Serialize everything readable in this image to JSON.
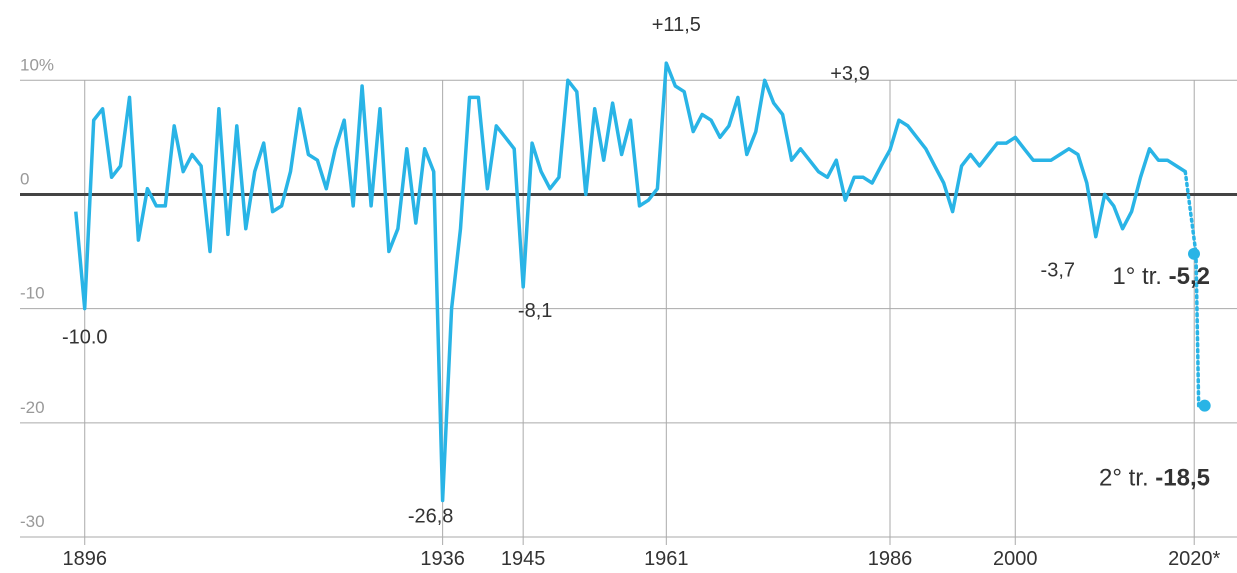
{
  "chart_data": {
    "type": "line",
    "x": [
      1895,
      1896,
      1897,
      1898,
      1899,
      1900,
      1901,
      1902,
      1903,
      1904,
      1905,
      1906,
      1907,
      1908,
      1909,
      1910,
      1911,
      1912,
      1913,
      1914,
      1915,
      1916,
      1917,
      1918,
      1919,
      1920,
      1921,
      1922,
      1923,
      1924,
      1925,
      1926,
      1927,
      1928,
      1929,
      1930,
      1931,
      1932,
      1933,
      1934,
      1935,
      1936,
      1937,
      1938,
      1939,
      1940,
      1941,
      1942,
      1943,
      1944,
      1945,
      1946,
      1947,
      1948,
      1949,
      1950,
      1951,
      1952,
      1953,
      1954,
      1955,
      1956,
      1957,
      1958,
      1959,
      1960,
      1961,
      1962,
      1963,
      1964,
      1965,
      1966,
      1967,
      1968,
      1969,
      1970,
      1971,
      1972,
      1973,
      1974,
      1975,
      1976,
      1977,
      1978,
      1979,
      1980,
      1981,
      1982,
      1983,
      1984,
      1985,
      1986,
      1987,
      1988,
      1989,
      1990,
      1991,
      1992,
      1993,
      1994,
      1995,
      1996,
      1997,
      1998,
      1999,
      2000,
      2001,
      2002,
      2003,
      2004,
      2005,
      2006,
      2007,
      2008,
      2009,
      2010,
      2011,
      2012,
      2013,
      2014,
      2015,
      2016,
      2017,
      2018,
      2019
    ],
    "series": [
      {
        "color": "#29b4e6",
        "values": [
          -1.5,
          -10,
          6.5,
          7.5,
          1.5,
          2.5,
          8.5,
          -4,
          0.5,
          -1,
          -1,
          6,
          2,
          3.5,
          2.5,
          -5,
          7.5,
          -3.5,
          6,
          -3,
          2,
          4.5,
          -1.5,
          -1,
          2,
          7.5,
          3.5,
          3,
          0.5,
          4,
          6.5,
          -1,
          9.5,
          -1,
          7.5,
          -5,
          -3,
          4,
          -2.5,
          4,
          2,
          -26.8,
          -10,
          -3,
          8.5,
          8.5,
          0.5,
          6,
          5,
          4,
          -8.1,
          4.5,
          2,
          0.5,
          1.5,
          10,
          9,
          0,
          7.5,
          3,
          8,
          3.5,
          6.5,
          -1,
          -0.5,
          0.5,
          11.5,
          9.5,
          9,
          5.5,
          7,
          6.5,
          5,
          6,
          8.5,
          3.5,
          5.5,
          10,
          8,
          7,
          3,
          4,
          3,
          2,
          1.5,
          3,
          -0.5,
          1.5,
          1.5,
          1,
          2.5,
          3.9,
          6.5,
          6,
          5,
          4,
          2.5,
          1,
          -1.5,
          2.5,
          3.5,
          2.5,
          3.5,
          4.5,
          4.5,
          5,
          4,
          3,
          3,
          3,
          3.5,
          4,
          3.5,
          1,
          -3.7,
          0,
          -1,
          -3,
          -1.5,
          1.5,
          4,
          3,
          3,
          2.5,
          2
        ]
      }
    ],
    "projection": {
      "x": [
        2020.2,
        2020.5
      ],
      "values": [
        -5.2,
        -18.5
      ],
      "labels": [
        "1° tr.",
        "2° tr."
      ],
      "value_labels": [
        "-5,2",
        "-18,5"
      ]
    },
    "annotations": [
      {
        "x": 1896,
        "value": -10,
        "label": "-10.0"
      },
      {
        "x": 1936,
        "value": -26.8,
        "label": "-26,8"
      },
      {
        "x": 1945,
        "value": -8.1,
        "label": "-8,1"
      },
      {
        "x": 1961,
        "value": 11.5,
        "label": "+11,5"
      },
      {
        "x": 1986,
        "value": 3.9,
        "label": "+3,9"
      },
      {
        "x": 2009,
        "value": -3.7,
        "label": "-3,7"
      }
    ],
    "xlim": [
      1891,
      2024
    ],
    "ylim": [
      -30,
      13
    ],
    "xticks": [
      1896,
      1936,
      1945,
      1961,
      1986,
      2000,
      {
        "value": 2020,
        "label": "2020*"
      }
    ],
    "yticks": [
      {
        "value": 10,
        "label": "10%"
      },
      0,
      -10,
      -20,
      -30
    ],
    "grid": true
  }
}
